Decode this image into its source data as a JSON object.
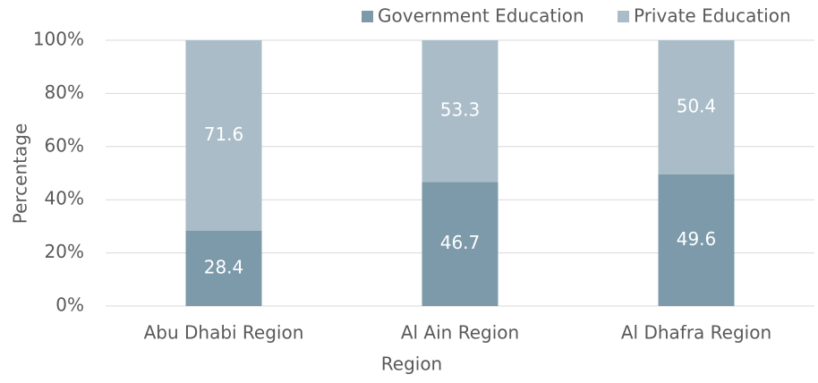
{
  "chart_data": {
    "type": "stacked_bar",
    "categories": [
      "Abu Dhabi Region",
      "Al Ain Region",
      "Al Dhafra Region"
    ],
    "series": [
      {
        "name": "Government Education",
        "color": "#7d9aab",
        "values": [
          28.4,
          46.7,
          49.6
        ]
      },
      {
        "name": "Private Education",
        "color": "#a9bcc8",
        "values": [
          71.6,
          53.3,
          50.4
        ]
      }
    ],
    "xlabel": "Region",
    "ylabel": "Percentage",
    "ylim": [
      0,
      100
    ],
    "yticks": [
      {
        "value": 0,
        "label": "0%"
      },
      {
        "value": 20,
        "label": "20%"
      },
      {
        "value": 40,
        "label": "40%"
      },
      {
        "value": 60,
        "label": "60%"
      },
      {
        "value": 80,
        "label": "80%"
      },
      {
        "value": 100,
        "label": "100%"
      }
    ],
    "grid": true,
    "legend": "top-right"
  }
}
